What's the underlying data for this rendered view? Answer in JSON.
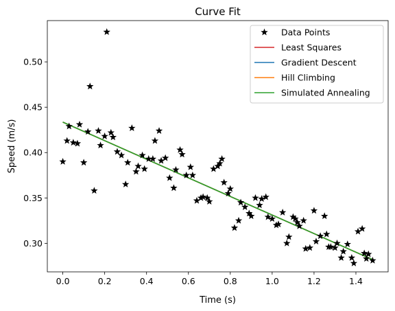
{
  "chart_data": {
    "type": "scatter",
    "title": "Curve Fit",
    "xlabel": "Time (s)",
    "ylabel": "Speed (m/s)",
    "xlim": [
      -0.074,
      1.554
    ],
    "ylim": [
      0.2685,
      0.5455
    ],
    "xticks": [
      0.0,
      0.2,
      0.4,
      0.6,
      0.8,
      1.0,
      1.2,
      1.4
    ],
    "xtick_labels": [
      "0.0",
      "0.2",
      "0.4",
      "0.6",
      "0.8",
      "1.0",
      "1.2",
      "1.4"
    ],
    "yticks": [
      0.3,
      0.35,
      0.4,
      0.45,
      0.5
    ],
    "ytick_labels": [
      "0.30",
      "0.35",
      "0.40",
      "0.45",
      "0.50"
    ],
    "grid": false,
    "legend_position": "upper right",
    "points": {
      "name": "Data Points",
      "marker": "star",
      "color": "#000000",
      "x": [
        0.0,
        0.02,
        0.03,
        0.05,
        0.07,
        0.08,
        0.1,
        0.12,
        0.13,
        0.15,
        0.17,
        0.18,
        0.2,
        0.21,
        0.23,
        0.24,
        0.26,
        0.28,
        0.3,
        0.31,
        0.33,
        0.35,
        0.36,
        0.38,
        0.39,
        0.41,
        0.43,
        0.44,
        0.46,
        0.47,
        0.49,
        0.51,
        0.53,
        0.54,
        0.56,
        0.57,
        0.59,
        0.61,
        0.62,
        0.64,
        0.66,
        0.67,
        0.69,
        0.7,
        0.72,
        0.74,
        0.75,
        0.77,
        0.79,
        0.8,
        0.82,
        0.84,
        0.85,
        0.87,
        0.89,
        0.9,
        0.92,
        0.94,
        0.95,
        0.97,
        0.98,
        1.0,
        1.02,
        1.03,
        1.05,
        1.07,
        1.08,
        1.1,
        1.11,
        1.13,
        1.15,
        1.16,
        1.18,
        1.2,
        1.21,
        1.23,
        1.25,
        1.26,
        1.28,
        1.3,
        1.31,
        1.33,
        1.34,
        1.36,
        1.38,
        1.39,
        1.41,
        1.43,
        1.44,
        1.46,
        1.48,
        0.76,
        1.12,
        1.27,
        1.45
      ],
      "y": [
        0.39,
        0.413,
        0.429,
        0.411,
        0.41,
        0.431,
        0.389,
        0.423,
        0.473,
        0.358,
        0.424,
        0.408,
        0.418,
        0.533,
        0.422,
        0.417,
        0.401,
        0.397,
        0.365,
        0.389,
        0.427,
        0.379,
        0.385,
        0.397,
        0.382,
        0.393,
        0.393,
        0.413,
        0.424,
        0.391,
        0.394,
        0.372,
        0.361,
        0.381,
        0.403,
        0.398,
        0.375,
        0.384,
        0.375,
        0.347,
        0.35,
        0.351,
        0.35,
        0.346,
        0.382,
        0.385,
        0.388,
        0.367,
        0.355,
        0.36,
        0.317,
        0.325,
        0.345,
        0.34,
        0.333,
        0.33,
        0.35,
        0.342,
        0.349,
        0.351,
        0.329,
        0.327,
        0.32,
        0.321,
        0.334,
        0.3,
        0.307,
        0.329,
        0.327,
        0.319,
        0.325,
        0.294,
        0.295,
        0.336,
        0.302,
        0.308,
        0.33,
        0.31,
        0.296,
        0.295,
        0.3,
        0.284,
        0.291,
        0.299,
        0.284,
        0.278,
        0.313,
        0.316,
        0.289,
        0.288,
        0.281,
        0.393,
        0.323,
        0.296,
        0.283
      ]
    },
    "series": [
      {
        "name": "Least Squares",
        "color": "#d62728",
        "x": [
          0.0,
          1.48
        ],
        "y": [
          0.4336,
          0.282
        ]
      },
      {
        "name": "Gradient Descent",
        "color": "#1f77b4",
        "x": [
          0.0,
          1.48
        ],
        "y": [
          0.4336,
          0.282
        ]
      },
      {
        "name": "Hill Climbing",
        "color": "#ff7f0e",
        "x": [
          0.0,
          1.48
        ],
        "y": [
          0.4336,
          0.282
        ]
      },
      {
        "name": "Simulated Annealing",
        "color": "#2ca02c",
        "x": [
          0.0,
          1.48
        ],
        "y": [
          0.4336,
          0.282
        ]
      }
    ]
  }
}
